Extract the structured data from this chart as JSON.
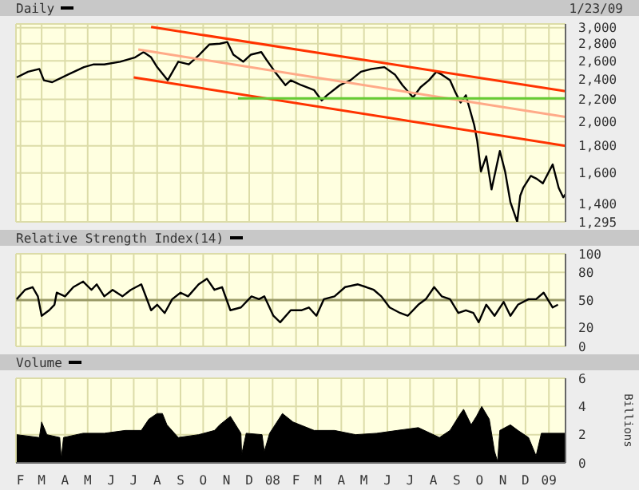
{
  "chart_data": [
    {
      "type": "line",
      "title": "Daily",
      "annotations": [
        "1/23/09"
      ],
      "log": true,
      "grid": true,
      "tick_labels": "y",
      "marker": "none",
      "xlim": [
        "2007-01-26",
        "2009-01-23"
      ],
      "xticks": [
        {
          "value": "2007-02-01",
          "label": null
        },
        {
          "value": "2007-03-01",
          "label": null
        },
        {
          "value": "2007-04-01",
          "label": null
        },
        {
          "value": "2007-05-01",
          "label": null
        },
        {
          "value": "2007-06-01",
          "label": null
        },
        {
          "value": "2007-07-01",
          "label": null
        },
        {
          "value": "2007-08-01",
          "label": null
        },
        {
          "value": "2007-09-01",
          "label": null
        },
        {
          "value": "2007-10-01",
          "label": null
        },
        {
          "value": "2007-11-01",
          "label": null
        },
        {
          "value": "2007-12-01",
          "label": null
        },
        {
          "value": "2008-01-01",
          "label": null
        },
        {
          "value": "2008-02-01",
          "label": null
        },
        {
          "value": "2008-03-01",
          "label": null
        },
        {
          "value": "2008-04-01",
          "label": null
        },
        {
          "value": "2008-05-01",
          "label": null
        },
        {
          "value": "2008-06-01",
          "label": null
        },
        {
          "value": "2008-07-01",
          "label": null
        },
        {
          "value": "2008-08-01",
          "label": null
        },
        {
          "value": "2008-09-01",
          "label": null
        },
        {
          "value": "2008-10-01",
          "label": null
        },
        {
          "value": "2008-11-01",
          "label": null
        },
        {
          "value": "2008-12-01",
          "label": null
        },
        {
          "value": "2009-01-01",
          "label": null
        }
      ],
      "ylim": [
        1295,
        3050
      ],
      "yticks": [
        {
          "value": 1295,
          "label": "1,295"
        },
        {
          "value": 1400,
          "label": "1,400"
        },
        {
          "value": 1600,
          "label": "1,600"
        },
        {
          "value": 1800,
          "label": "1,800"
        },
        {
          "value": 2000,
          "label": "2,000"
        },
        {
          "value": 2200,
          "label": "2,200"
        },
        {
          "value": 2400,
          "label": "2,400"
        },
        {
          "value": 2600,
          "label": "2,600"
        },
        {
          "value": 2800,
          "label": "2,800"
        },
        {
          "value": 3000,
          "label": "3,000"
        }
      ],
      "series": [
        {
          "color": "#000000",
          "x": [
            "2007-01-27",
            "2007-02-11",
            "2007-02-26",
            "2007-03-04",
            "2007-03-15",
            "2007-04-05",
            "2007-04-26",
            "2007-05-09",
            "2007-05-23",
            "2007-06-13",
            "2007-07-03",
            "2007-07-14",
            "2007-07-24",
            "2007-08-01",
            "2007-08-15",
            "2007-08-29",
            "2007-09-12",
            "2007-09-26",
            "2007-10-09",
            "2007-10-23",
            "2007-11-02",
            "2007-11-10",
            "2007-11-23",
            "2007-12-03",
            "2007-12-17",
            "2007-12-24",
            "2008-01-04",
            "2008-01-18",
            "2008-01-25",
            "2008-02-08",
            "2008-02-25",
            "2008-03-06",
            "2008-03-13",
            "2008-03-30",
            "2008-04-13",
            "2008-04-27",
            "2008-05-11",
            "2008-05-28",
            "2008-06-11",
            "2008-06-21",
            "2008-07-05",
            "2008-07-15",
            "2008-07-26",
            "2008-08-05",
            "2008-08-12",
            "2008-08-23",
            "2008-08-30",
            "2008-09-06",
            "2008-09-13",
            "2008-09-24",
            "2008-09-28",
            "2008-10-03",
            "2008-10-10",
            "2008-10-17",
            "2008-10-28",
            "2008-11-04",
            "2008-11-11",
            "2008-11-20",
            "2008-11-24",
            "2008-11-28",
            "2008-12-08",
            "2008-12-16",
            "2008-12-24",
            "2009-01-06",
            "2009-01-14",
            "2009-01-20",
            "2009-01-23"
          ],
          "values": [
            2420,
            2480,
            2510,
            2390,
            2370,
            2450,
            2530,
            2560,
            2560,
            2590,
            2640,
            2700,
            2640,
            2530,
            2390,
            2590,
            2560,
            2670,
            2790,
            2800,
            2820,
            2670,
            2590,
            2670,
            2700,
            2610,
            2480,
            2340,
            2390,
            2340,
            2290,
            2190,
            2240,
            2340,
            2390,
            2480,
            2510,
            2530,
            2450,
            2340,
            2220,
            2320,
            2390,
            2480,
            2450,
            2390,
            2270,
            2170,
            2240,
            1970,
            1840,
            1610,
            1720,
            1490,
            1760,
            1610,
            1410,
            1295,
            1450,
            1500,
            1580,
            1560,
            1530,
            1660,
            1500,
            1440,
            1460
          ]
        },
        {
          "color": "#ff3300",
          "x": [
            "2007-07-24",
            "2009-01-23"
          ],
          "values": [
            3010,
            2280
          ]
        },
        {
          "color": "#ffaa88",
          "x": [
            "2007-07-07",
            "2009-01-23"
          ],
          "values": [
            2730,
            2040
          ]
        },
        {
          "color": "#ff3300",
          "x": [
            "2007-07-01",
            "2009-01-23"
          ],
          "values": [
            2420,
            1800
          ]
        },
        {
          "color": "#66cc33",
          "x": [
            "2007-11-16",
            "2009-01-23"
          ],
          "values": [
            2210,
            2210
          ]
        }
      ]
    },
    {
      "type": "line",
      "title": "Relative Strength Index(14)",
      "grid": true,
      "tick_labels": "y",
      "marker": "none",
      "xlim": [
        "2007-01-26",
        "2009-01-23"
      ],
      "xticks": [
        {
          "value": "2007-02-01",
          "label": null
        },
        {
          "value": "2007-03-01",
          "label": null
        },
        {
          "value": "2007-04-01",
          "label": null
        },
        {
          "value": "2007-05-01",
          "label": null
        },
        {
          "value": "2007-06-01",
          "label": null
        },
        {
          "value": "2007-07-01",
          "label": null
        },
        {
          "value": "2007-08-01",
          "label": null
        },
        {
          "value": "2007-09-01",
          "label": null
        },
        {
          "value": "2007-10-01",
          "label": null
        },
        {
          "value": "2007-11-01",
          "label": null
        },
        {
          "value": "2007-12-01",
          "label": null
        },
        {
          "value": "2008-01-01",
          "label": null
        },
        {
          "value": "2008-02-01",
          "label": null
        },
        {
          "value": "2008-03-01",
          "label": null
        },
        {
          "value": "2008-04-01",
          "label": null
        },
        {
          "value": "2008-05-01",
          "label": null
        },
        {
          "value": "2008-06-01",
          "label": null
        },
        {
          "value": "2008-07-01",
          "label": null
        },
        {
          "value": "2008-08-01",
          "label": null
        },
        {
          "value": "2008-09-01",
          "label": null
        },
        {
          "value": "2008-10-01",
          "label": null
        },
        {
          "value": "2008-11-01",
          "label": null
        },
        {
          "value": "2008-12-01",
          "label": null
        },
        {
          "value": "2009-01-01",
          "label": null
        }
      ],
      "ylim": [
        0,
        100
      ],
      "yticks": [
        0,
        20,
        50,
        80,
        100
      ],
      "ref_lines": [
        {
          "axis": "y",
          "value": 50,
          "color": "#999966"
        }
      ],
      "series": [
        {
          "color": "#000000",
          "x": [
            "2007-01-27",
            "2007-02-07",
            "2007-02-17",
            "2007-02-24",
            "2007-03-01",
            "2007-03-11",
            "2007-03-18",
            "2007-03-21",
            "2007-04-01",
            "2007-04-12",
            "2007-04-25",
            "2007-05-06",
            "2007-05-13",
            "2007-05-23",
            "2007-06-03",
            "2007-06-16",
            "2007-06-27",
            "2007-07-11",
            "2007-07-24",
            "2007-08-01",
            "2007-08-11",
            "2007-08-21",
            "2007-09-01",
            "2007-09-11",
            "2007-09-25",
            "2007-10-06",
            "2007-10-16",
            "2007-10-26",
            "2007-11-06",
            "2007-11-20",
            "2007-12-04",
            "2007-12-14",
            "2007-12-21",
            "2008-01-02",
            "2008-01-11",
            "2008-01-25",
            "2008-02-08",
            "2008-02-18",
            "2008-02-28",
            "2008-03-09",
            "2008-03-23",
            "2008-04-06",
            "2008-04-23",
            "2008-05-04",
            "2008-05-14",
            "2008-05-24",
            "2008-06-04",
            "2008-06-18",
            "2008-06-28",
            "2008-07-12",
            "2008-07-22",
            "2008-08-02",
            "2008-08-12",
            "2008-08-23",
            "2008-09-03",
            "2008-09-13",
            "2008-09-23",
            "2008-09-30",
            "2008-10-10",
            "2008-10-21",
            "2008-11-02",
            "2008-11-11",
            "2008-11-21",
            "2008-12-05",
            "2008-12-15",
            "2008-12-25",
            "2009-01-06",
            "2009-01-13"
          ],
          "values": [
            51,
            61,
            64,
            54,
            33,
            39,
            45,
            58,
            54,
            64,
            70,
            61,
            67,
            54,
            61,
            54,
            61,
            67,
            39,
            45,
            36,
            51,
            58,
            54,
            67,
            73,
            61,
            64,
            39,
            42,
            54,
            51,
            54,
            33,
            26,
            39,
            39,
            42,
            33,
            51,
            54,
            64,
            67,
            64,
            61,
            54,
            42,
            36,
            33,
            45,
            51,
            64,
            54,
            51,
            36,
            39,
            36,
            26,
            45,
            33,
            48,
            33,
            45,
            51,
            51,
            58,
            42,
            45
          ]
        }
      ]
    },
    {
      "type": "area",
      "title": "Volume",
      "ylabel": "Billions",
      "grid": true,
      "marker": "none",
      "xlim": [
        "2007-01-26",
        "2009-01-23"
      ],
      "xticks": [
        {
          "value": "2007-02-01",
          "label": "F"
        },
        {
          "value": "2007-03-01",
          "label": "M"
        },
        {
          "value": "2007-04-01",
          "label": "A"
        },
        {
          "value": "2007-05-01",
          "label": "M"
        },
        {
          "value": "2007-06-01",
          "label": "J"
        },
        {
          "value": "2007-07-01",
          "label": "J"
        },
        {
          "value": "2007-08-01",
          "label": "A"
        },
        {
          "value": "2007-09-01",
          "label": "S"
        },
        {
          "value": "2007-10-01",
          "label": "O"
        },
        {
          "value": "2007-11-01",
          "label": "N"
        },
        {
          "value": "2007-12-01",
          "label": "D"
        },
        {
          "value": "2008-01-01",
          "label": "08"
        },
        {
          "value": "2008-02-01",
          "label": "F"
        },
        {
          "value": "2008-03-01",
          "label": "M"
        },
        {
          "value": "2008-04-01",
          "label": "A"
        },
        {
          "value": "2008-05-01",
          "label": "M"
        },
        {
          "value": "2008-06-01",
          "label": "J"
        },
        {
          "value": "2008-07-01",
          "label": "J"
        },
        {
          "value": "2008-08-01",
          "label": "A"
        },
        {
          "value": "2008-09-01",
          "label": "S"
        },
        {
          "value": "2008-10-01",
          "label": "O"
        },
        {
          "value": "2008-11-01",
          "label": "N"
        },
        {
          "value": "2008-12-01",
          "label": "D"
        },
        {
          "value": "2009-01-01",
          "label": "09"
        }
      ],
      "ylim": [
        0,
        6
      ],
      "yticks": [
        0,
        2,
        4,
        6
      ],
      "series": [
        {
          "color": "#000000",
          "x": [
            "2007-01-27",
            "2007-02-26",
            "2007-03-01",
            "2007-03-08",
            "2007-03-25",
            "2007-03-27",
            "2007-03-30",
            "2007-04-25",
            "2007-05-23",
            "2007-06-20",
            "2007-07-11",
            "2007-07-21",
            "2007-08-01",
            "2007-08-08",
            "2007-08-14",
            "2007-08-29",
            "2007-09-25",
            "2007-10-16",
            "2007-10-23",
            "2007-11-06",
            "2007-11-20",
            "2007-11-21",
            "2007-11-27",
            "2007-12-18",
            "2007-12-21",
            "2007-12-28",
            "2008-01-14",
            "2008-01-28",
            "2008-02-25",
            "2008-03-23",
            "2008-04-20",
            "2008-05-18",
            "2008-06-14",
            "2008-07-12",
            "2008-08-09",
            "2008-08-23",
            "2008-09-06",
            "2008-09-10",
            "2008-09-20",
            "2008-09-27",
            "2008-10-04",
            "2008-10-14",
            "2008-10-21",
            "2008-10-25",
            "2008-10-28",
            "2008-11-11",
            "2008-11-21",
            "2008-12-05",
            "2008-12-15",
            "2008-12-22",
            "2009-01-22"
          ],
          "values": [
            2.0,
            1.8,
            2.9,
            2.0,
            1.8,
            0.3,
            1.8,
            2.1,
            2.1,
            2.3,
            2.3,
            3.1,
            3.5,
            3.5,
            2.7,
            1.8,
            2.0,
            2.3,
            2.7,
            3.3,
            2.1,
            0.6,
            2.1,
            2.0,
            0.8,
            2.1,
            3.5,
            2.9,
            2.3,
            2.3,
            2.0,
            2.1,
            2.3,
            2.5,
            1.8,
            2.3,
            3.5,
            3.8,
            2.7,
            3.3,
            4.0,
            3.1,
            0.8,
            0.1,
            2.3,
            2.7,
            2.3,
            1.8,
            0.5,
            2.1,
            2.1
          ]
        }
      ]
    }
  ]
}
